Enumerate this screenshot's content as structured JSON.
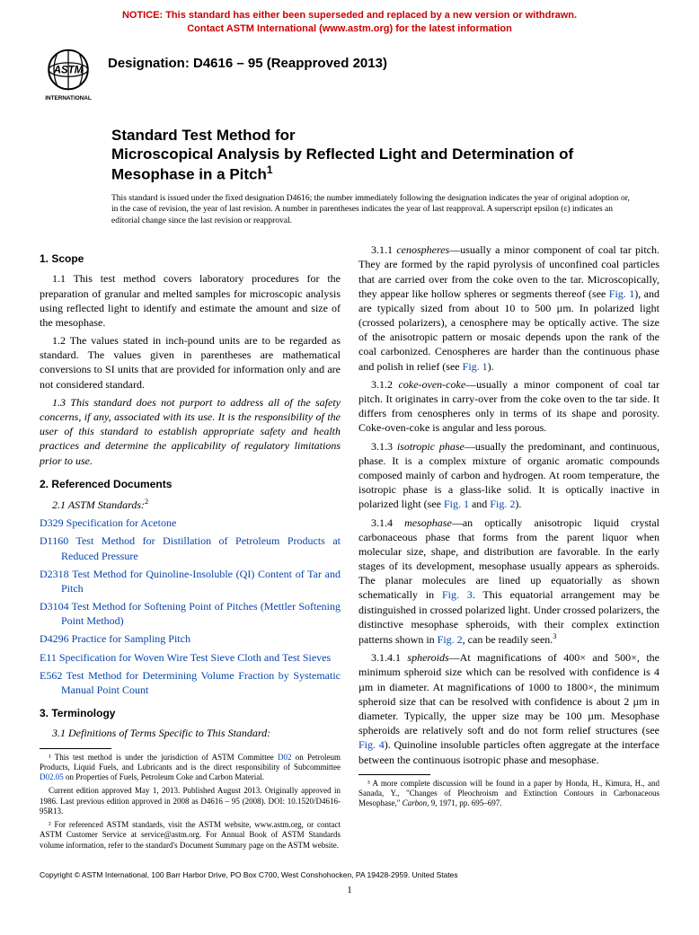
{
  "notice": {
    "line1": "NOTICE: This standard has either been superseded and replaced by a new version or withdrawn.",
    "line2": "Contact ASTM International (www.astm.org) for the latest information",
    "color": "#cc0000"
  },
  "logo": {
    "label": "ASTM INTERNATIONAL",
    "fill": "#000000"
  },
  "designation": "Designation: D4616 – 95 (Reapproved 2013)",
  "title": {
    "pre": "Standard Test Method for",
    "main": "Microscopical Analysis by Reflected Light and Determination of Mesophase in a Pitch",
    "sup": "1"
  },
  "issued": "This standard is issued under the fixed designation D4616; the number immediately following the designation indicates the year of original adoption or, in the case of revision, the year of last revision. A number in parentheses indicates the year of last reapproval. A superscript epsilon (ε) indicates an editorial change since the last revision or reapproval.",
  "sections": {
    "scope": {
      "head": "1. Scope",
      "p1": "1.1 This test method covers laboratory procedures for the preparation of granular and melted samples for microscopic analysis using reflected light to identify and estimate the amount and size of the mesophase.",
      "p2": "1.2 The values stated in inch-pound units are to be regarded as standard. The values given in parentheses are mathematical conversions to SI units that are provided for information only and are not considered standard.",
      "p3": "1.3 This standard does not purport to address all of the safety concerns, if any, associated with its use. It is the responsibility of the user of this standard to establish appropriate safety and health practices and determine the applicability of regulatory limitations prior to use."
    },
    "refdocs": {
      "head": "2. Referenced Documents",
      "sub": "2.1 ASTM Standards:",
      "sup": "2",
      "items": [
        {
          "code": "D329",
          "title": "Specification for Acetone"
        },
        {
          "code": "D1160",
          "title": "Test Method for Distillation of Petroleum Products at Reduced Pressure"
        },
        {
          "code": "D2318",
          "title": "Test Method for Quinoline-Insoluble (QI) Content of Tar and Pitch"
        },
        {
          "code": "D3104",
          "title": "Test Method for Softening Point of Pitches (Mettler Softening Point Method)"
        },
        {
          "code": "D4296",
          "title": "Practice for Sampling Pitch"
        },
        {
          "code": "E11",
          "title": "Specification for Woven Wire Test Sieve Cloth and Test Sieves"
        },
        {
          "code": "E562",
          "title": "Test Method for Determining Volume Fraction by Systematic Manual Point Count"
        }
      ]
    },
    "term": {
      "head": "3. Terminology",
      "sub": "3.1 Definitions of Terms Specific to This Standard:",
      "p311a": "3.1.1 ",
      "p311t": "cenospheres",
      "p311b": "—usually a minor component of coal tar pitch. They are formed by the rapid pyrolysis of unconfined coal particles that are carried over from the coke oven to the tar. Microscopically, they appear like hollow spheres or segments thereof (see ",
      "p311c": "), and are typically sized from about 10 to 500 µm. In polarized light (crossed polarizers), a cenosphere may be optically active. The size of the anisotropic pattern or mosaic depends upon the rank of the coal carbonized. Cenospheres are harder than the continuous phase and polish in relief (see ",
      "p311d": ").",
      "p312a": "3.1.2 ",
      "p312t": "coke-oven-coke",
      "p312b": "—usually a minor component of coal tar pitch. It originates in carry-over from the coke oven to the tar side. It differs from cenospheres only in terms of its shape and porosity. Coke-oven-coke is angular and less porous.",
      "p313a": "3.1.3 ",
      "p313t": "isotropic phase",
      "p313b": "—usually the predominant, and continuous, phase. It is a complex mixture of organic aromatic compounds composed mainly of carbon and hydrogen. At room temperature, the isotropic phase is a glass-like solid. It is optically inactive in polarized light (see ",
      "p313c": " and ",
      "p313d": ").",
      "p314a": "3.1.4 ",
      "p314t": "mesophase",
      "p314b": "—an optically anisotropic liquid crystal carbonaceous phase that forms from the parent liquor when molecular size, shape, and distribution are favorable. In the early stages of its development, mesophase usually appears as spheroids. The planar molecules are lined up equatorially as shown schematically in ",
      "p314c": ". This equatorial arrangement may be distinguished in crossed polarized light. Under crossed polarizers, the distinctive mesophase spheroids, with their complex extinction patterns shown in ",
      "p314d": ", can be readily seen.",
      "p314sup": "3",
      "p3141a": "3.1.4.1 ",
      "p3141t": "spheroids",
      "p3141b": "—At magnifications of 400× and 500×, the minimum spheroid size which can be resolved with confidence is 4 µm in diameter. At magnifications of 1000 to 1800×, the minimum spheroid size that can be resolved with confidence is about 2 µm in diameter. Typically, the upper size may be 100 µm. Mesophase spheroids are relatively soft and do not form relief structures (see ",
      "p3141c": "). Quinoline insoluble particles often aggregate at the interface between the continuous isotropic phase and mesophase."
    },
    "figrefs": {
      "fig1": "Fig. 1",
      "fig2": "Fig. 2",
      "fig3": "Fig. 3",
      "fig4": "Fig. 4"
    }
  },
  "footnotes": {
    "f1a": "¹ This test method is under the jurisdiction of ASTM Committee ",
    "f1link1": "D02",
    "f1b": " on Petroleum Products, Liquid Fuels, and Lubricants and is the direct responsibility of Subcommittee ",
    "f1link2": "D02.05",
    "f1c": " on Properties of Fuels, Petroleum Coke and Carbon Material.",
    "f1d": "Current edition approved May 1, 2013. Published August 2013. Originally approved in 1986. Last previous edition approved in 2008 as D4616 – 95 (2008). DOI: 10.1520/D4616-95R13.",
    "f2": "² For referenced ASTM standards, visit the ASTM website, www.astm.org, or contact ASTM Customer Service at service@astm.org. For Annual Book of ASTM Standards volume information, refer to the standard's Document Summary page on the ASTM website.",
    "f3a": "³ A more complete discussion will be found in a paper by Honda, H., Kimura, H., and Sanada, Y., \"Changes of Pleochroism and Extinction Contours in Carbonaceous Mesophase,\" ",
    "f3ital": "Carbon",
    "f3b": ", 9, 1971, pp. 695–697."
  },
  "copyright": "Copyright © ASTM International, 100 Barr Harbor Drive, PO Box C700, West Conshohocken, PA 19428-2959. United States",
  "page_number": "1"
}
